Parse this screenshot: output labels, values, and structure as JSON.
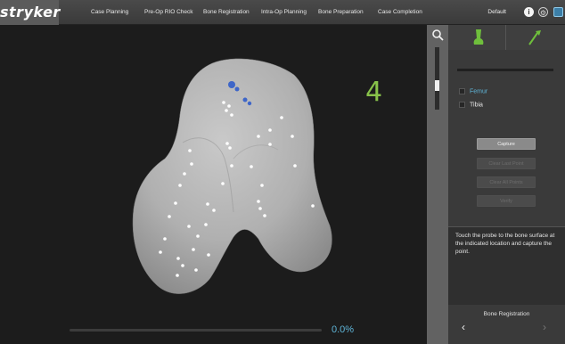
{
  "brand": {
    "logo": "stryker"
  },
  "nav": {
    "tabs": [
      {
        "label": "Case Planning"
      },
      {
        "label": "Pre-Op RIO Check"
      },
      {
        "label": "Bone Registration"
      },
      {
        "label": "Intra-Op Planning"
      },
      {
        "label": "Bone Preparation"
      },
      {
        "label": "Case Completion"
      }
    ],
    "user_label": "Default",
    "info_icon": "info-icon",
    "settings_icon": "gear-icon",
    "display_icon": "display-icon"
  },
  "viewport": {
    "point_number": "4",
    "progress_text": "0.0%",
    "progress_value": 0.0
  },
  "zoom": {
    "icon": "magnifier-icon",
    "slider_level": 0.56
  },
  "panel": {
    "tab_femur_icon": "femur-icon",
    "tab_probe_icon": "probe-icon",
    "bones": [
      {
        "label": "Femur",
        "selected": true
      },
      {
        "label": "Tibia",
        "selected": false
      }
    ],
    "buttons": {
      "capture": "Capture",
      "clear_last": "Clear Last Point",
      "clear_all": "Clear All Points",
      "verify": "Verify"
    },
    "instructions": "Touch the probe to the bone surface at the indicated location and capture the point.",
    "footer_label": "Bone Registration"
  },
  "colors": {
    "accent_green": "#88c24a",
    "accent_blue": "#5fb5d8",
    "background": "#1c1c1c",
    "panel": "#3a3a3a"
  }
}
